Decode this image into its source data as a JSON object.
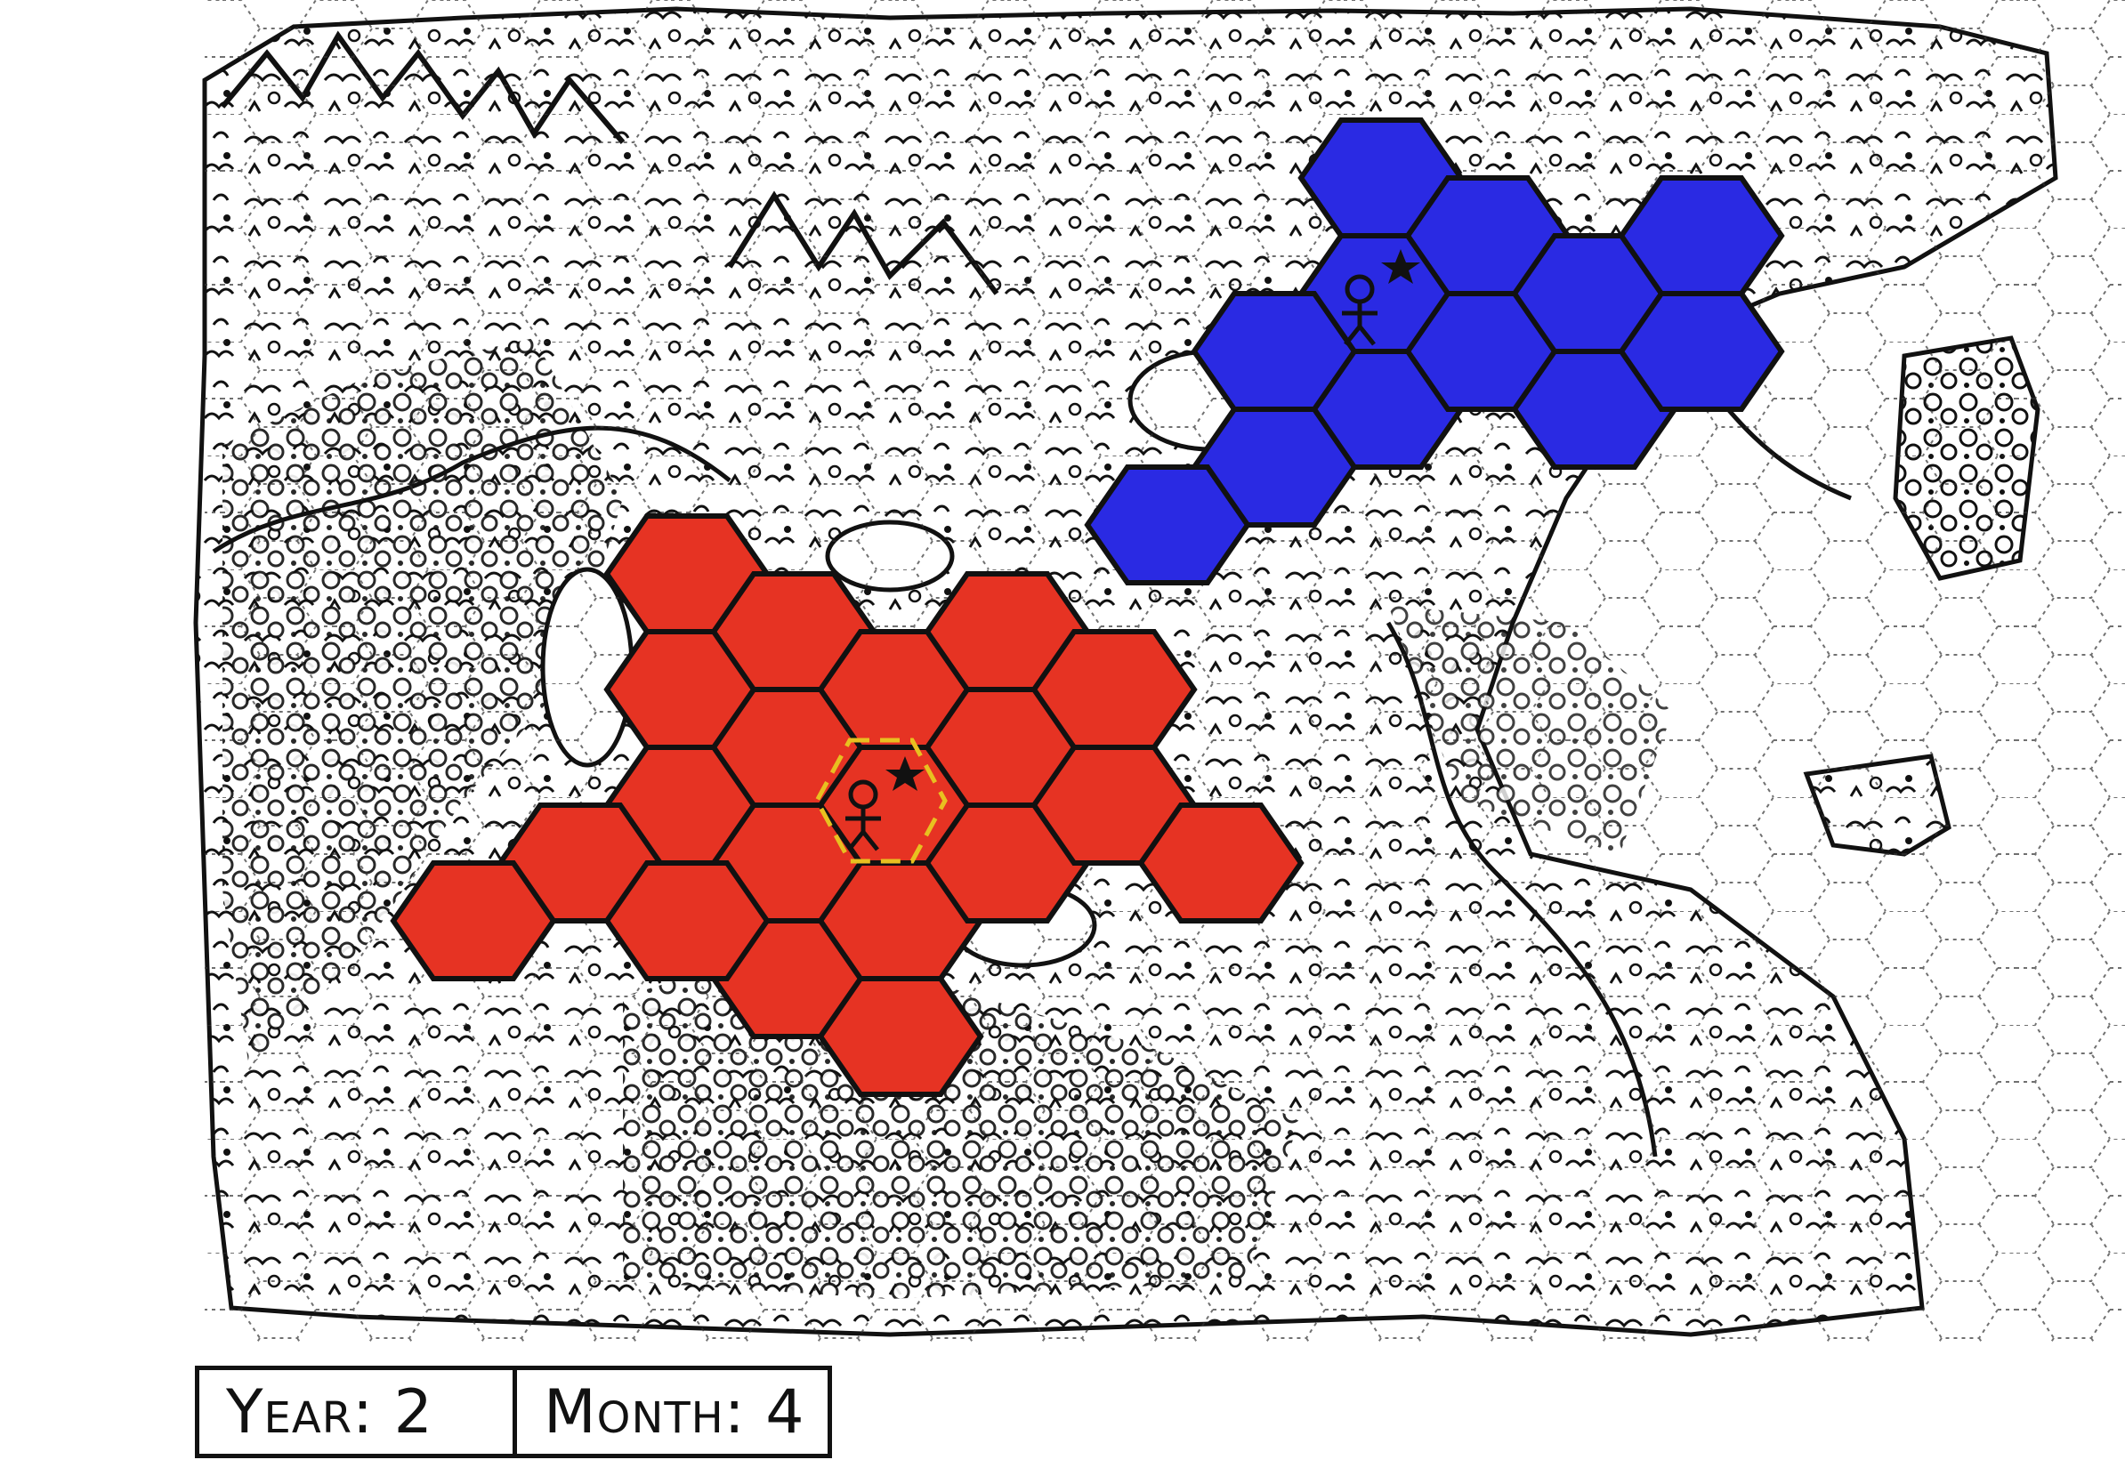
{
  "status": {
    "year_label": "Year: 2",
    "month_label": "Month: 4"
  },
  "players": [
    {
      "team": "red",
      "color": "#e63323",
      "icons": [
        "person-icon",
        "star-icon"
      ]
    },
    {
      "team": "blue",
      "color": "#2a2ae3",
      "icons": [
        "person-icon",
        "star-icon"
      ]
    }
  ],
  "selection": {
    "color": "#e8c020",
    "style": "dashed"
  },
  "colors": {
    "ink": "#111111",
    "paper": "#ffffff"
  }
}
